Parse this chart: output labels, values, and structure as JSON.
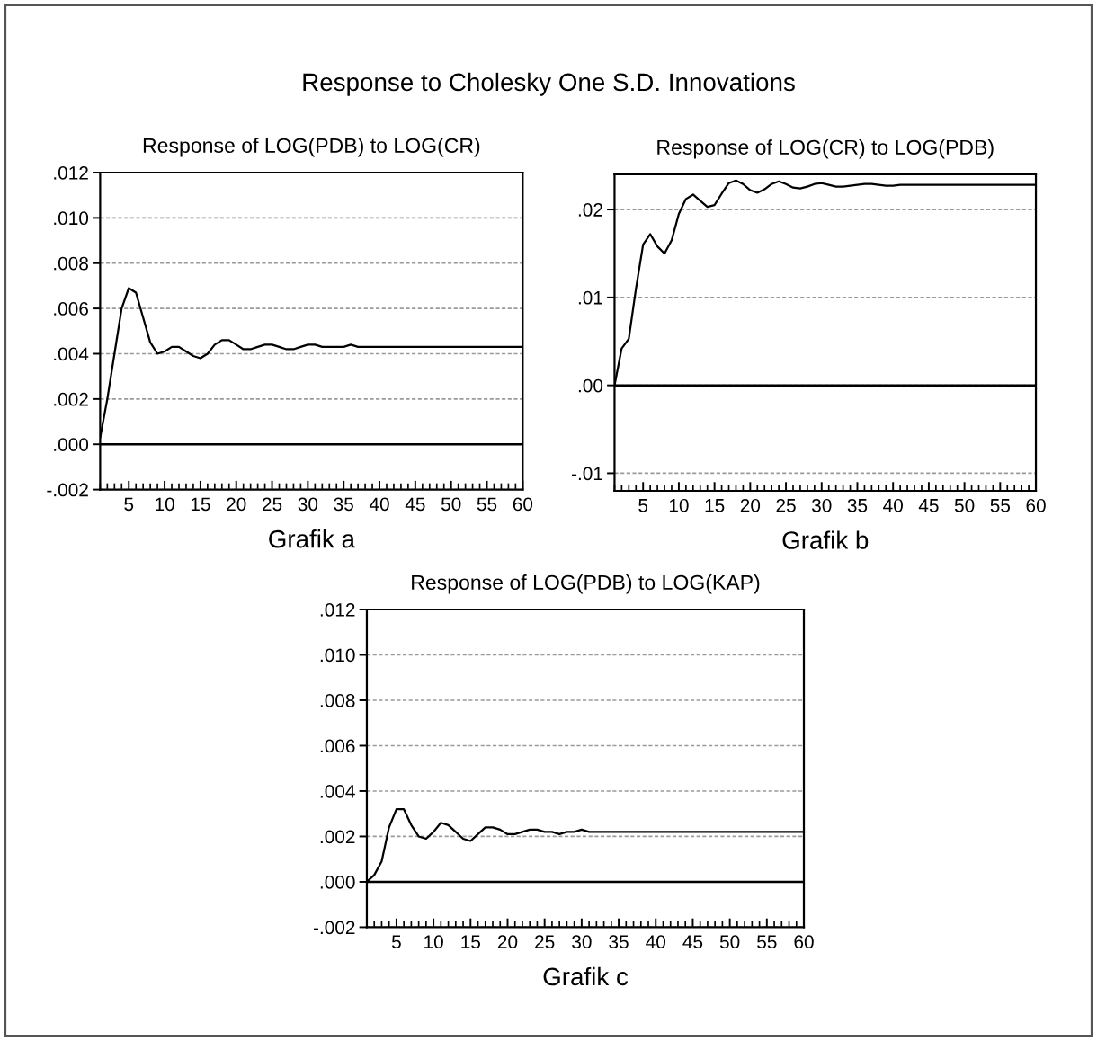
{
  "chart_data": [
    {
      "type": "line",
      "title": "Response of LOG(PDB) to LOG(CR)",
      "xlabel": "Grafik a",
      "annotations": [
        "Response to Cholesky One S.D. Innovations"
      ],
      "x": [
        1,
        2,
        3,
        4,
        5,
        6,
        7,
        8,
        9,
        10,
        11,
        12,
        13,
        14,
        15,
        16,
        17,
        18,
        19,
        20,
        21,
        22,
        23,
        24,
        25,
        26,
        27,
        28,
        29,
        30,
        31,
        32,
        33,
        34,
        35,
        36,
        37,
        38,
        39,
        40,
        41,
        42,
        43,
        44,
        45,
        46,
        47,
        48,
        49,
        50,
        51,
        52,
        53,
        54,
        55,
        56,
        57,
        58,
        59,
        60
      ],
      "xlim": [
        1,
        60
      ],
      "xticks": [
        5,
        10,
        15,
        20,
        25,
        30,
        35,
        40,
        45,
        50,
        55,
        60
      ],
      "ylim": [
        -0.002,
        0.012
      ],
      "yticks": [
        {
          "value": -0.002,
          "label": "-.002"
        },
        {
          "value": 0.0,
          "label": ".000"
        },
        {
          "value": 0.002,
          "label": ".002"
        },
        {
          "value": 0.004,
          "label": ".004"
        },
        {
          "value": 0.006,
          "label": ".006"
        },
        {
          "value": 0.008,
          "label": ".008"
        },
        {
          "value": 0.01,
          "label": ".010"
        },
        {
          "value": 0.012,
          "label": ".012"
        }
      ],
      "grid": "y",
      "ref_lines": [
        {
          "axis": "y",
          "value": 0,
          "line_style": "solid",
          "color": "#000000"
        }
      ],
      "series": [
        {
          "color": "#000000",
          "values": [
            0.0003,
            0.002,
            0.004,
            0.006,
            0.0069,
            0.0067,
            0.0056,
            0.0045,
            0.004,
            0.0041,
            0.0043,
            0.0043,
            0.0041,
            0.0039,
            0.0038,
            0.004,
            0.0044,
            0.0046,
            0.0046,
            0.0044,
            0.0042,
            0.0042,
            0.0043,
            0.0044,
            0.0044,
            0.0043,
            0.0042,
            0.0042,
            0.0043,
            0.0044,
            0.0044,
            0.0043,
            0.0043,
            0.0043,
            0.0043,
            0.0044,
            0.0043,
            0.0043,
            0.0043,
            0.0043,
            0.0043,
            0.0043,
            0.0043,
            0.0043,
            0.0043,
            0.0043,
            0.0043,
            0.0043,
            0.0043,
            0.0043,
            0.0043,
            0.0043,
            0.0043,
            0.0043,
            0.0043,
            0.0043,
            0.0043,
            0.0043,
            0.0043,
            0.0043
          ]
        }
      ]
    },
    {
      "type": "line",
      "title": "Response of LOG(CR) to LOG(PDB)",
      "xlabel": "Grafik b",
      "x": [
        1,
        2,
        3,
        4,
        5,
        6,
        7,
        8,
        9,
        10,
        11,
        12,
        13,
        14,
        15,
        16,
        17,
        18,
        19,
        20,
        21,
        22,
        23,
        24,
        25,
        26,
        27,
        28,
        29,
        30,
        31,
        32,
        33,
        34,
        35,
        36,
        37,
        38,
        39,
        40,
        41,
        42,
        43,
        44,
        45,
        46,
        47,
        48,
        49,
        50,
        51,
        52,
        53,
        54,
        55,
        56,
        57,
        58,
        59,
        60
      ],
      "xlim": [
        1,
        60
      ],
      "xticks": [
        5,
        10,
        15,
        20,
        25,
        30,
        35,
        40,
        45,
        50,
        55,
        60
      ],
      "ylim": [
        -0.012,
        0.024
      ],
      "yticks": [
        {
          "value": -0.01,
          "label": "-.01"
        },
        {
          "value": 0.0,
          "label": ".00"
        },
        {
          "value": 0.01,
          "label": ".01"
        },
        {
          "value": 0.02,
          "label": ".02"
        }
      ],
      "grid": "y",
      "ref_lines": [
        {
          "axis": "y",
          "value": 0,
          "line_style": "solid",
          "color": "#000000"
        }
      ],
      "series": [
        {
          "color": "#000000",
          "values": [
            0.0,
            0.0042,
            0.0053,
            0.011,
            0.016,
            0.0172,
            0.0158,
            0.015,
            0.0165,
            0.0195,
            0.0212,
            0.0217,
            0.021,
            0.0203,
            0.0205,
            0.0218,
            0.023,
            0.0233,
            0.0229,
            0.0222,
            0.0219,
            0.0223,
            0.0229,
            0.0232,
            0.0229,
            0.0225,
            0.0224,
            0.0226,
            0.0229,
            0.023,
            0.0228,
            0.0226,
            0.0226,
            0.0227,
            0.0228,
            0.0229,
            0.0229,
            0.0228,
            0.0227,
            0.0227,
            0.0228,
            0.0228,
            0.0228,
            0.0228,
            0.0228,
            0.0228,
            0.0228,
            0.0228,
            0.0228,
            0.0228,
            0.0228,
            0.0228,
            0.0228,
            0.0228,
            0.0228,
            0.0228,
            0.0228,
            0.0228,
            0.0228,
            0.0228
          ]
        }
      ]
    },
    {
      "type": "line",
      "title": "Response of LOG(PDB) to LOG(KAP)",
      "xlabel": "Grafik c",
      "x": [
        1,
        2,
        3,
        4,
        5,
        6,
        7,
        8,
        9,
        10,
        11,
        12,
        13,
        14,
        15,
        16,
        17,
        18,
        19,
        20,
        21,
        22,
        23,
        24,
        25,
        26,
        27,
        28,
        29,
        30,
        31,
        32,
        33,
        34,
        35,
        36,
        37,
        38,
        39,
        40,
        41,
        42,
        43,
        44,
        45,
        46,
        47,
        48,
        49,
        50,
        51,
        52,
        53,
        54,
        55,
        56,
        57,
        58,
        59,
        60
      ],
      "xlim": [
        1,
        60
      ],
      "xticks": [
        5,
        10,
        15,
        20,
        25,
        30,
        35,
        40,
        45,
        50,
        55,
        60
      ],
      "ylim": [
        -0.002,
        0.012
      ],
      "yticks": [
        {
          "value": -0.002,
          "label": "-.002"
        },
        {
          "value": 0.0,
          "label": ".000"
        },
        {
          "value": 0.002,
          "label": ".002"
        },
        {
          "value": 0.004,
          "label": ".004"
        },
        {
          "value": 0.006,
          "label": ".006"
        },
        {
          "value": 0.008,
          "label": ".008"
        },
        {
          "value": 0.01,
          "label": ".010"
        },
        {
          "value": 0.012,
          "label": ".012"
        }
      ],
      "grid": "y",
      "ref_lines": [
        {
          "axis": "y",
          "value": 0,
          "line_style": "solid",
          "color": "#000000"
        }
      ],
      "series": [
        {
          "color": "#000000",
          "values": [
            0.0,
            0.0003,
            0.0009,
            0.0024,
            0.0032,
            0.0032,
            0.0025,
            0.002,
            0.0019,
            0.0022,
            0.0026,
            0.0025,
            0.0022,
            0.0019,
            0.0018,
            0.0021,
            0.0024,
            0.0024,
            0.0023,
            0.0021,
            0.0021,
            0.0022,
            0.0023,
            0.0023,
            0.0022,
            0.0022,
            0.0021,
            0.0022,
            0.0022,
            0.0023,
            0.0022,
            0.0022,
            0.0022,
            0.0022,
            0.0022,
            0.0022,
            0.0022,
            0.0022,
            0.0022,
            0.0022,
            0.0022,
            0.0022,
            0.0022,
            0.0022,
            0.0022,
            0.0022,
            0.0022,
            0.0022,
            0.0022,
            0.0022,
            0.0022,
            0.0022,
            0.0022,
            0.0022,
            0.0022,
            0.0022,
            0.0022,
            0.0022,
            0.0022,
            0.0022
          ]
        }
      ]
    }
  ]
}
